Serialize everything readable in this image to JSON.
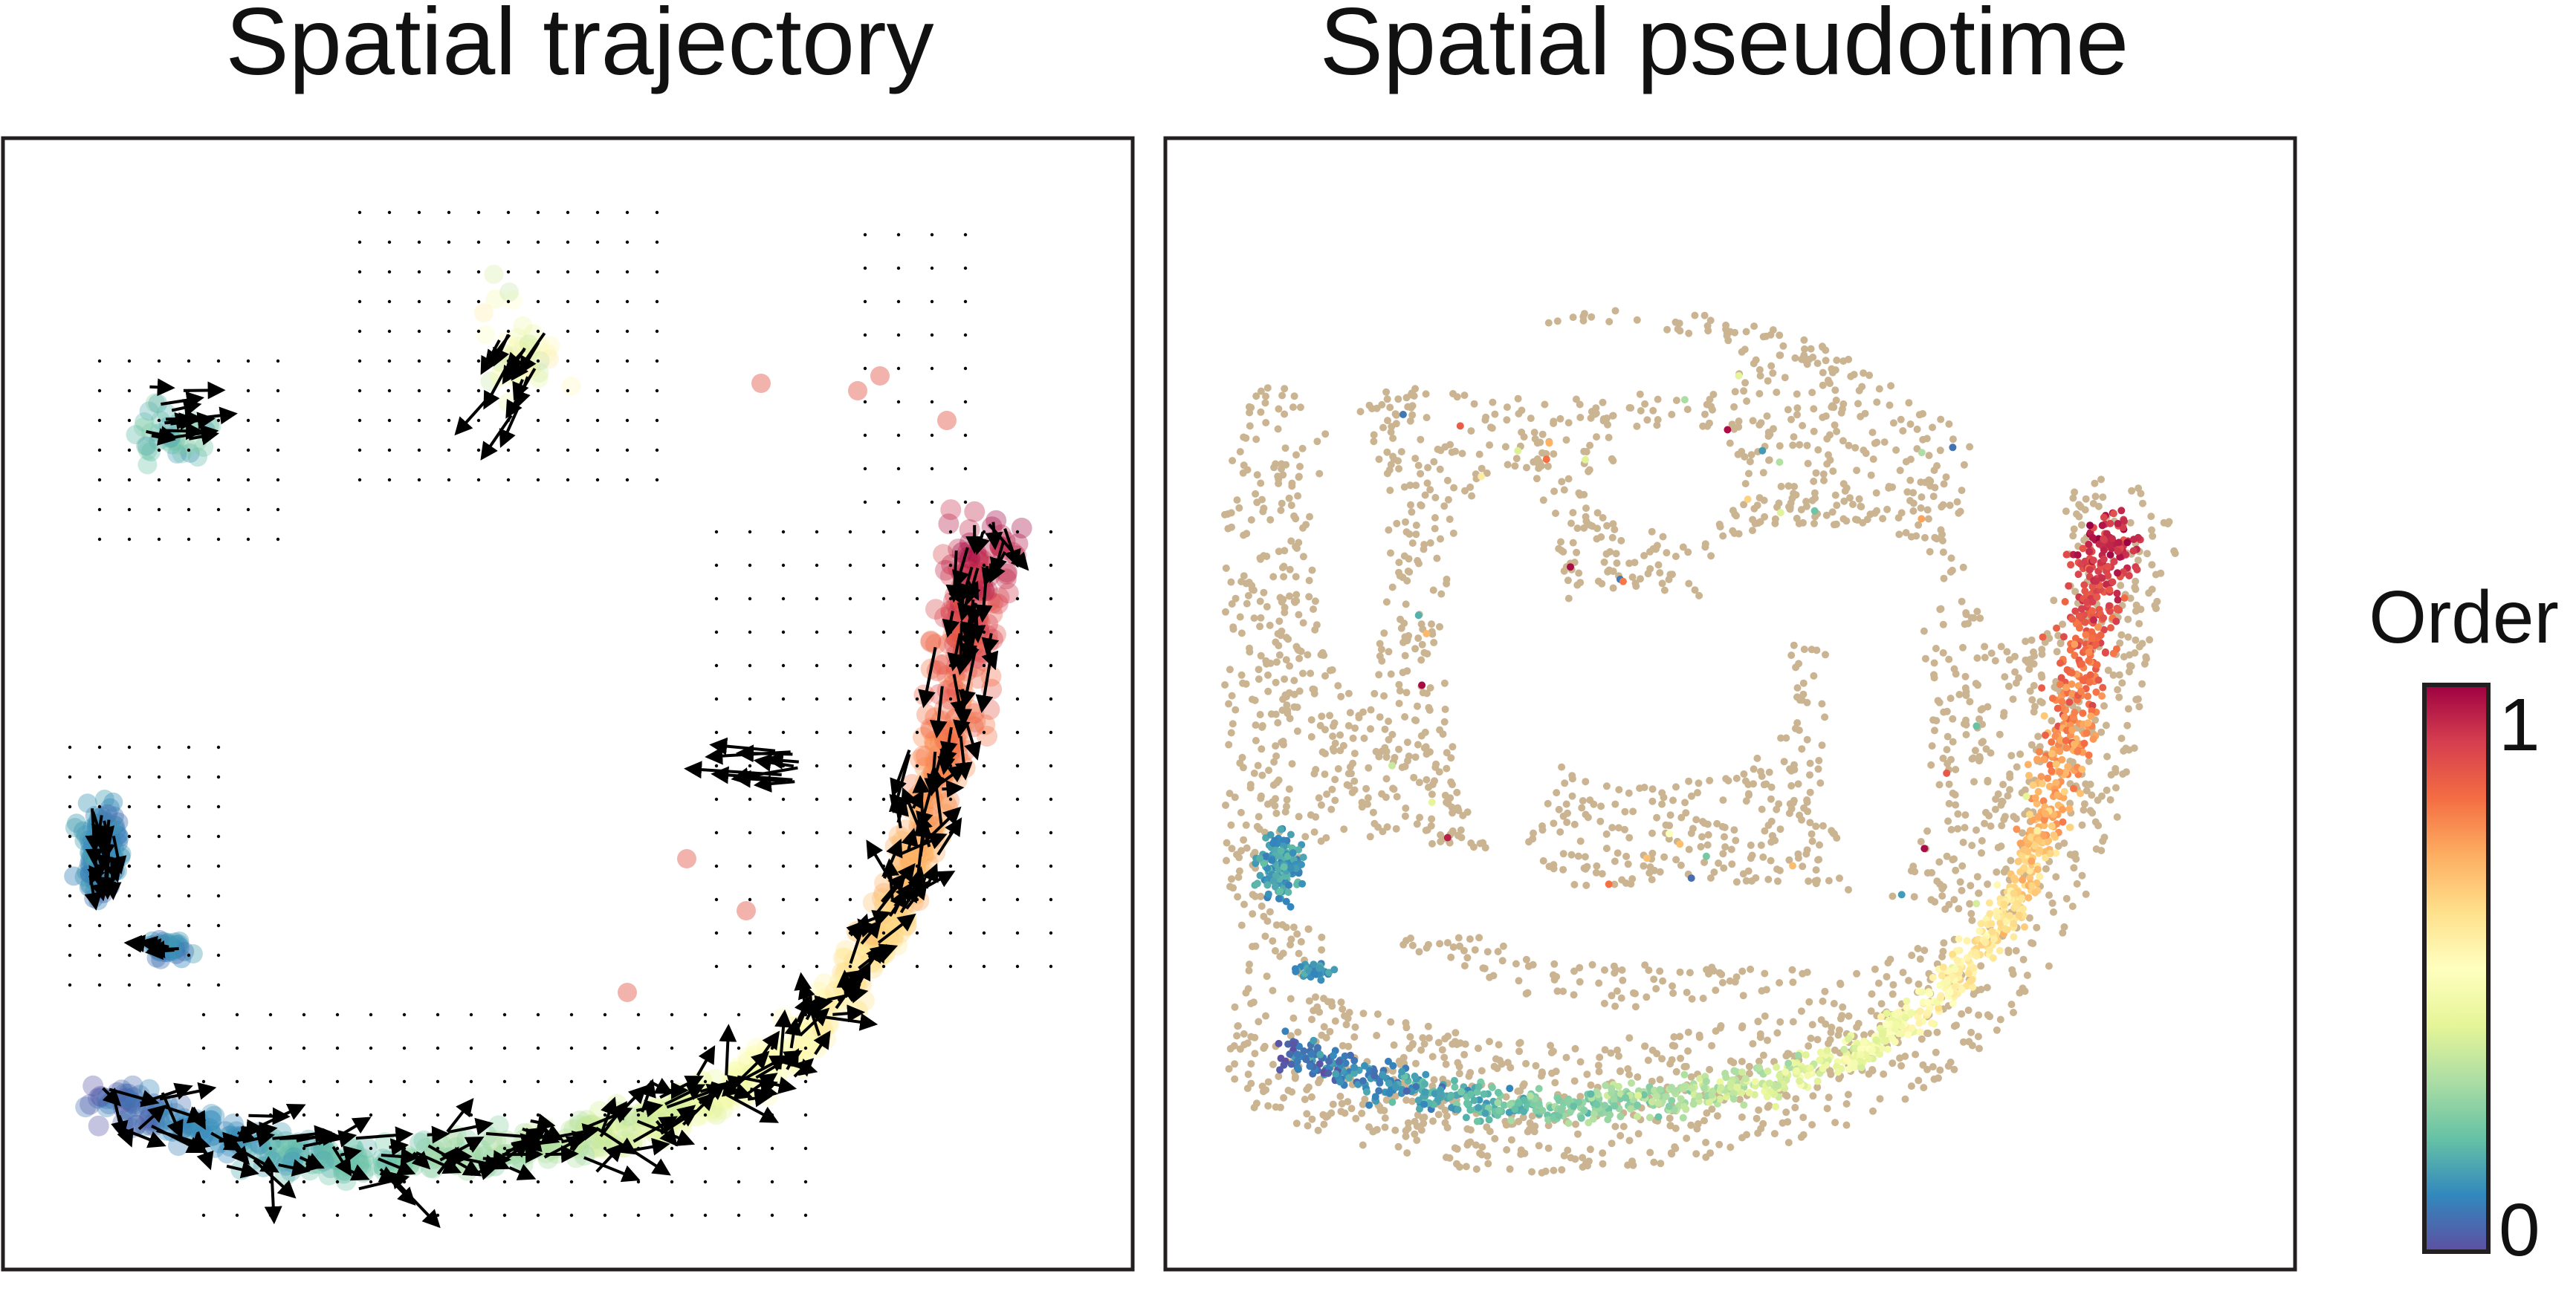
{
  "panels": [
    {
      "title": "Spatial trajectory"
    },
    {
      "title": "Spatial pseudotime"
    }
  ],
  "colorbar": {
    "title": "Order",
    "max_label": "1",
    "min_label": "0",
    "colormap": "Spectral_r",
    "stops": [
      "#5e4fa2",
      "#3288bd",
      "#66c2a5",
      "#abdda4",
      "#e6f598",
      "#ffffbf",
      "#fee08b",
      "#fdae61",
      "#f46d43",
      "#d53e4f",
      "#9e0142"
    ]
  },
  "colors": {
    "background_cells": "#cbb491",
    "frame": "#231f20",
    "arrow": "#000000"
  },
  "chart_data": [
    {
      "type": "scatter",
      "subtype": "vector-field",
      "title": "Spatial trajectory",
      "axes_visible": false,
      "color_by": "Order",
      "color_range": [
        0,
        1
      ]
    },
    {
      "type": "scatter",
      "title": "Spatial pseudotime",
      "axes_visible": false,
      "color_by": "Order",
      "color_range": [
        0,
        1
      ]
    }
  ]
}
